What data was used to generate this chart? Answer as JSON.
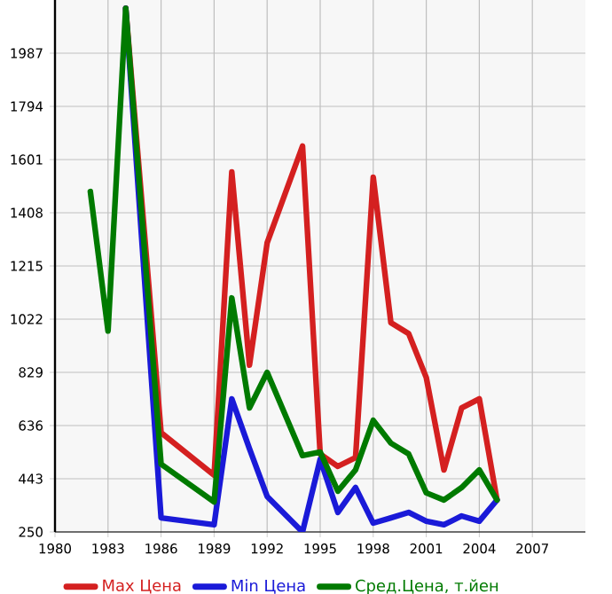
{
  "chart_data": {
    "type": "line",
    "xlim": [
      1980,
      2010
    ],
    "xticks": [
      1980,
      1983,
      1986,
      1989,
      1992,
      1995,
      1998,
      2001,
      2004,
      2007
    ],
    "ylim": [
      250,
      2180
    ],
    "yticks": [
      250,
      443,
      636,
      829,
      1022,
      1215,
      1408,
      1601,
      1794,
      1987
    ],
    "grid": true,
    "legend": "bottom",
    "marker": "none",
    "line_style": "solid",
    "series": [
      {
        "name": "Max Цена",
        "color": "#d42020",
        "x": [
          1984,
          1986,
          1989,
          1990,
          1991,
          1992,
          1994,
          1995,
          1996,
          1997,
          1998,
          1999,
          2000,
          2001,
          2002,
          2003,
          2004,
          2005
        ],
        "values": [
          2150,
          610,
          456,
          1556,
          855,
          1299,
          1650,
          533,
          488,
          520,
          1537,
          1009,
          970,
          810,
          475,
          700,
          733,
          366
        ]
      },
      {
        "name": "Min Цена",
        "color": "#1a1ad8",
        "x": [
          1984,
          1986,
          1989,
          1990,
          1991,
          1992,
          1994,
          1995,
          1996,
          1997,
          1998,
          1999,
          2000,
          2001,
          2002,
          2003,
          2004,
          2005
        ],
        "values": [
          2150,
          301,
          276,
          733,
          552,
          379,
          250,
          514,
          321,
          411,
          282,
          301,
          321,
          289,
          276,
          308,
          289,
          366
        ]
      },
      {
        "name": "Сред.Цена, т.йен",
        "color": "#007a00",
        "x": [
          1982,
          1983,
          1984,
          1986,
          1989,
          1990,
          1991,
          1992,
          1994,
          1995,
          1996,
          1997,
          1998,
          1999,
          2000,
          2001,
          2002,
          2003,
          2004,
          2005
        ],
        "values": [
          1485,
          979,
          2150,
          496,
          359,
          1099,
          700,
          829,
          527,
          540,
          398,
          475,
          655,
          572,
          533,
          392,
          366,
          411,
          475,
          366
        ]
      }
    ]
  }
}
